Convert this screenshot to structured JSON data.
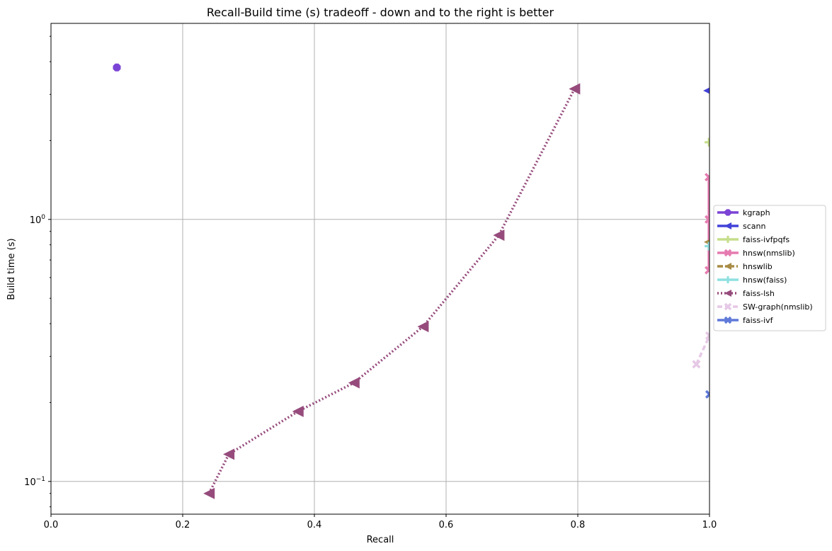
{
  "chart_data": {
    "type": "line",
    "title": "Recall-Build time (s) tradeoff - down and to the right is better",
    "xlabel": "Recall",
    "ylabel": "Build time (s)",
    "xlim": [
      0.0,
      1.0
    ],
    "ylim": [
      0.075,
      5.6
    ],
    "yscale": "log",
    "grid": true,
    "legend_position": "right",
    "x_ticks": [
      "0.0",
      "0.2",
      "0.4",
      "0.6",
      "0.8",
      "1.0"
    ],
    "y_ticks": [
      {
        "value": 0.1,
        "base": "10",
        "exp": "−1"
      },
      {
        "value": 1,
        "base": "10",
        "exp": "0"
      }
    ],
    "series": [
      {
        "name": "kgraph",
        "color": "#7b44d6",
        "marker": "octagon",
        "linestyle": "solid",
        "x": [
          0.1
        ],
        "y": [
          3.8
        ]
      },
      {
        "name": "scann",
        "color": "#4343d9",
        "marker": "triangle-left",
        "linestyle": "solid",
        "x": [
          0.999,
          1.0
        ],
        "y": [
          3.1,
          3.1
        ]
      },
      {
        "name": "faiss-ivfpqfs",
        "color": "#c5de8a",
        "marker": "plus",
        "linestyle": "solid",
        "x": [
          0.999,
          1.0
        ],
        "y": [
          1.97,
          1.97
        ]
      },
      {
        "name": "hnsw(nmslib)",
        "color": "#e57bb0",
        "marker": "x",
        "linestyle": "solid",
        "x": [
          0.999,
          0.999,
          0.999
        ],
        "y": [
          0.64,
          1.0,
          1.45
        ]
      },
      {
        "name": "hnswlib",
        "color": "#a88c45",
        "marker": "triangle-left",
        "linestyle": "dashdot",
        "x": [
          1.0
        ],
        "y": [
          0.82
        ]
      },
      {
        "name": "hnsw(faiss)",
        "color": "#8ee0e0",
        "marker": "plus",
        "linestyle": "solid",
        "x": [
          0.999,
          1.0
        ],
        "y": [
          0.79,
          0.79
        ]
      },
      {
        "name": "faiss-lsh",
        "color": "#964b7c",
        "marker": "triangle-left",
        "linestyle": "dotted",
        "x": [
          0.24,
          0.27,
          0.375,
          0.46,
          0.565,
          0.68,
          0.795
        ],
        "y": [
          0.09,
          0.127,
          0.185,
          0.238,
          0.39,
          0.87,
          3.15
        ]
      },
      {
        "name": "SW-graph(nmslib)",
        "color": "#e6c9e6",
        "marker": "x",
        "linestyle": "dashed",
        "x": [
          0.98,
          1.0
        ],
        "y": [
          0.28,
          0.36
        ]
      },
      {
        "name": "faiss-ivf",
        "color": "#5f79d9",
        "marker": "x",
        "linestyle": "solid",
        "x": [
          1.0
        ],
        "y": [
          0.215
        ]
      }
    ]
  }
}
